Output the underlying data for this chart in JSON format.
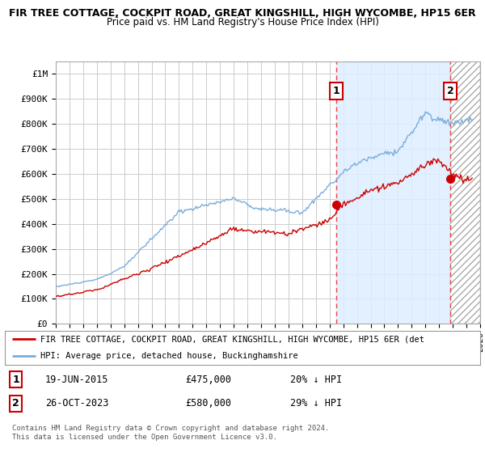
{
  "title_line1": "FIR TREE COTTAGE, COCKPIT ROAD, GREAT KINGSHILL, HIGH WYCOMBE, HP15 6ER",
  "title_line2": "Price paid vs. HM Land Registry's House Price Index (HPI)",
  "ylim": [
    0,
    1050000
  ],
  "xlim_start": 1995,
  "xlim_end": 2026,
  "grid_color": "#cccccc",
  "background_color": "#ffffff",
  "plot_bg_color": "#ffffff",
  "sale1_date": 2015.47,
  "sale1_price": 475000,
  "sale2_date": 2023.82,
  "sale2_price": 580000,
  "red_line_color": "#cc0000",
  "blue_line_color": "#7aaddc",
  "marker_color": "#cc0000",
  "dashed_line_color": "#ee4444",
  "fill_between_color": "#ddeeff",
  "hatch_color": "#cccccc",
  "legend_label_red": "FIR TREE COTTAGE, COCKPIT ROAD, GREAT KINGSHILL, HIGH WYCOMBE, HP15 6ER (det",
  "legend_label_blue": "HPI: Average price, detached house, Buckinghamshire",
  "footer": "Contains HM Land Registry data © Crown copyright and database right 2024.\nThis data is licensed under the Open Government Licence v3.0.",
  "yticks": [
    0,
    100000,
    200000,
    300000,
    400000,
    500000,
    600000,
    700000,
    800000,
    900000,
    1000000
  ],
  "ytick_labels": [
    "£0",
    "£100K",
    "£200K",
    "£300K",
    "£400K",
    "£500K",
    "£600K",
    "£700K",
    "£800K",
    "£900K",
    "£1M"
  ]
}
